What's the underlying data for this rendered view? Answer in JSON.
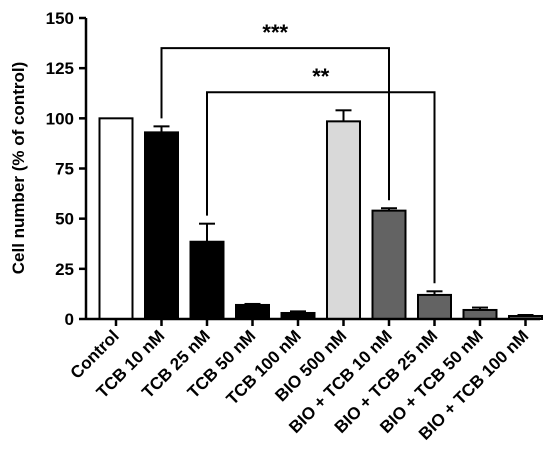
{
  "chart_data": {
    "type": "bar",
    "title": "",
    "xlabel": "",
    "ylabel": "Cell number (% of control)",
    "ylim": [
      0,
      150
    ],
    "yticks": [
      0,
      25,
      50,
      75,
      100,
      125,
      150
    ],
    "grid": false,
    "categories": [
      "Control",
      "TCB 10 nM",
      "TCB 25 nM",
      "TCB 50 nM",
      "TCB 100 nM",
      "BIO 500 nM",
      "BIO + TCB 10 nM",
      "BIO + TCB 25 nM",
      "BIO + TCB 50 nM",
      "BIO + TCB 100 nM"
    ],
    "values": [
      100,
      93,
      38.5,
      7,
      3,
      98.5,
      54,
      12,
      4.5,
      1.5
    ],
    "errors": [
      0,
      3,
      9,
      0.5,
      0.8,
      5.5,
      1.2,
      1.8,
      1.2,
      0.5
    ],
    "colors": [
      "#ffffff",
      "#000000",
      "#000000",
      "#000000",
      "#000000",
      "#d9d9d9",
      "#636363",
      "#636363",
      "#636363",
      "#636363"
    ],
    "significance": [
      {
        "from": "TCB 10 nM",
        "to": "BIO + TCB 10 nM",
        "label": "***",
        "y": 135
      },
      {
        "from": "TCB 25 nM",
        "to": "BIO + TCB 25 nM",
        "label": "**",
        "y": 113
      }
    ]
  }
}
